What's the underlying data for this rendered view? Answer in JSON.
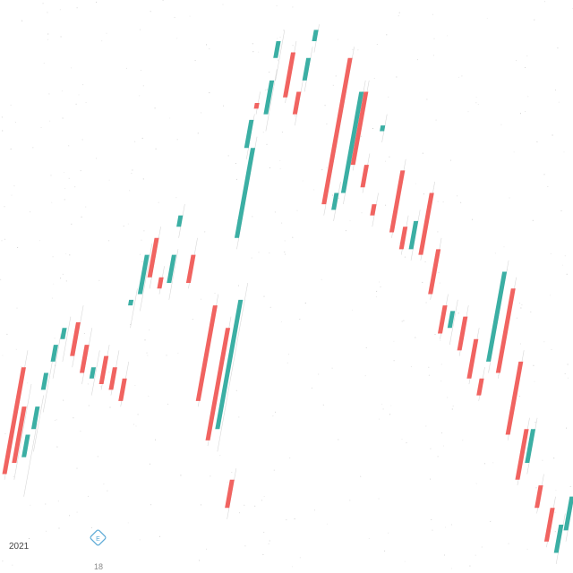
{
  "chart_data": {
    "type": "candlestick",
    "title": "",
    "xlabel": "",
    "ylabel": "",
    "x_tick_labels": [
      "2021",
      "18"
    ],
    "ylim": [
      0,
      100
    ],
    "colors": {
      "up": "#26a69a",
      "down": "#ef5350",
      "wick": "#b8b8b8"
    },
    "candles": [
      {
        "i": 0,
        "o": 35,
        "h": 38,
        "l": 15,
        "c": 16,
        "dir": "down"
      },
      {
        "i": 1,
        "o": 28,
        "h": 32,
        "l": 15,
        "c": 18,
        "dir": "down"
      },
      {
        "i": 2,
        "o": 19,
        "h": 25,
        "l": 12,
        "c": 23,
        "dir": "up"
      },
      {
        "i": 3,
        "o": 24,
        "h": 30,
        "l": 20,
        "c": 28,
        "dir": "up"
      },
      {
        "i": 4,
        "o": 31,
        "h": 36,
        "l": 27,
        "c": 34,
        "dir": "up"
      },
      {
        "i": 5,
        "o": 36,
        "h": 41,
        "l": 33,
        "c": 39,
        "dir": "up"
      },
      {
        "i": 6,
        "o": 40,
        "h": 44,
        "l": 36,
        "c": 42,
        "dir": "up"
      },
      {
        "i": 7,
        "o": 43,
        "h": 46,
        "l": 35,
        "c": 37,
        "dir": "down"
      },
      {
        "i": 8,
        "o": 39,
        "h": 42,
        "l": 32,
        "c": 34,
        "dir": "down"
      },
      {
        "i": 9,
        "o": 33,
        "h": 38,
        "l": 30,
        "c": 35,
        "dir": "up"
      },
      {
        "i": 10,
        "o": 37,
        "h": 39,
        "l": 31,
        "c": 32,
        "dir": "down"
      },
      {
        "i": 11,
        "o": 35,
        "h": 38,
        "l": 30,
        "c": 31,
        "dir": "down"
      },
      {
        "i": 12,
        "o": 33,
        "h": 36,
        "l": 28,
        "c": 29,
        "dir": "down"
      },
      {
        "i": 13,
        "o": 46,
        "h": 49,
        "l": 42,
        "c": 47,
        "dir": "up"
      },
      {
        "i": 14,
        "o": 48,
        "h": 57,
        "l": 45,
        "c": 55,
        "dir": "up"
      },
      {
        "i": 15,
        "o": 58,
        "h": 60,
        "l": 49,
        "c": 51,
        "dir": "down"
      },
      {
        "i": 16,
        "o": 51,
        "h": 53,
        "l": 48,
        "c": 49,
        "dir": "down"
      },
      {
        "i": 17,
        "o": 50,
        "h": 56,
        "l": 47,
        "c": 55,
        "dir": "up"
      },
      {
        "i": 18,
        "o": 60,
        "h": 64,
        "l": 58,
        "c": 62,
        "dir": "up"
      },
      {
        "i": 19,
        "o": 55,
        "h": 58,
        "l": 49,
        "c": 50,
        "dir": "down"
      },
      {
        "i": 20,
        "o": 46,
        "h": 48,
        "l": 28,
        "c": 29,
        "dir": "down"
      },
      {
        "i": 21,
        "o": 42,
        "h": 44,
        "l": 21,
        "c": 22,
        "dir": "down"
      },
      {
        "i": 22,
        "o": 24,
        "h": 50,
        "l": 20,
        "c": 47,
        "dir": "up"
      },
      {
        "i": 23,
        "o": 15,
        "h": 17,
        "l": 8,
        "c": 10,
        "dir": "down"
      },
      {
        "i": 24,
        "o": 58,
        "h": 76,
        "l": 56,
        "c": 74,
        "dir": "up"
      },
      {
        "i": 25,
        "o": 74,
        "h": 80,
        "l": 72,
        "c": 79,
        "dir": "up"
      },
      {
        "i": 26,
        "o": 82,
        "h": 84,
        "l": 80,
        "c": 81,
        "dir": "down"
      },
      {
        "i": 27,
        "o": 80,
        "h": 88,
        "l": 77,
        "c": 86,
        "dir": "up"
      },
      {
        "i": 28,
        "o": 90,
        "h": 95,
        "l": 86,
        "c": 93,
        "dir": "up"
      },
      {
        "i": 29,
        "o": 91,
        "h": 93,
        "l": 82,
        "c": 83,
        "dir": "down"
      },
      {
        "i": 30,
        "o": 84,
        "h": 86,
        "l": 78,
        "c": 80,
        "dir": "down"
      },
      {
        "i": 31,
        "o": 86,
        "h": 92,
        "l": 84,
        "c": 90,
        "dir": "up"
      },
      {
        "i": 32,
        "o": 93,
        "h": 96,
        "l": 91,
        "c": 95,
        "dir": "up"
      },
      {
        "i": 33,
        "o": 90,
        "h": 92,
        "l": 62,
        "c": 64,
        "dir": "down"
      },
      {
        "i": 34,
        "o": 63,
        "h": 68,
        "l": 61,
        "c": 66,
        "dir": "up"
      },
      {
        "i": 35,
        "o": 66,
        "h": 86,
        "l": 64,
        "c": 84,
        "dir": "up"
      },
      {
        "i": 36,
        "o": 84,
        "h": 86,
        "l": 70,
        "c": 71,
        "dir": "down"
      },
      {
        "i": 37,
        "o": 71,
        "h": 73,
        "l": 66,
        "c": 67,
        "dir": "down"
      },
      {
        "i": 38,
        "o": 64,
        "h": 66,
        "l": 60,
        "c": 62,
        "dir": "down"
      },
      {
        "i": 39,
        "o": 78,
        "h": 80,
        "l": 75,
        "c": 77,
        "dir": "up"
      },
      {
        "i": 40,
        "o": 70,
        "h": 72,
        "l": 58,
        "c": 59,
        "dir": "down"
      },
      {
        "i": 41,
        "o": 60,
        "h": 62,
        "l": 55,
        "c": 56,
        "dir": "down"
      },
      {
        "i": 42,
        "o": 56,
        "h": 63,
        "l": 54,
        "c": 61,
        "dir": "up"
      },
      {
        "i": 43,
        "o": 66,
        "h": 68,
        "l": 54,
        "c": 55,
        "dir": "down"
      },
      {
        "i": 44,
        "o": 56,
        "h": 58,
        "l": 47,
        "c": 48,
        "dir": "down"
      },
      {
        "i": 45,
        "o": 46,
        "h": 48,
        "l": 40,
        "c": 41,
        "dir": "down"
      },
      {
        "i": 46,
        "o": 42,
        "h": 47,
        "l": 39,
        "c": 45,
        "dir": "up"
      },
      {
        "i": 47,
        "o": 44,
        "h": 46,
        "l": 37,
        "c": 38,
        "dir": "down"
      },
      {
        "i": 48,
        "o": 40,
        "h": 42,
        "l": 32,
        "c": 33,
        "dir": "down"
      },
      {
        "i": 49,
        "o": 33,
        "h": 35,
        "l": 29,
        "c": 30,
        "dir": "down"
      },
      {
        "i": 50,
        "o": 36,
        "h": 54,
        "l": 34,
        "c": 52,
        "dir": "up"
      },
      {
        "i": 51,
        "o": 49,
        "h": 51,
        "l": 33,
        "c": 34,
        "dir": "down"
      },
      {
        "i": 52,
        "o": 36,
        "h": 38,
        "l": 22,
        "c": 23,
        "dir": "down"
      },
      {
        "i": 53,
        "o": 24,
        "h": 26,
        "l": 14,
        "c": 15,
        "dir": "down"
      },
      {
        "i": 54,
        "o": 18,
        "h": 26,
        "l": 16,
        "c": 24,
        "dir": "up"
      },
      {
        "i": 55,
        "o": 14,
        "h": 16,
        "l": 9,
        "c": 10,
        "dir": "down"
      },
      {
        "i": 56,
        "o": 10,
        "h": 12,
        "l": 3,
        "c": 4,
        "dir": "down"
      },
      {
        "i": 57,
        "o": 2,
        "h": 9,
        "l": 0,
        "c": 7,
        "dir": "up"
      },
      {
        "i": 58,
        "o": 6,
        "h": 14,
        "l": 4,
        "c": 12,
        "dir": "up"
      }
    ]
  }
}
